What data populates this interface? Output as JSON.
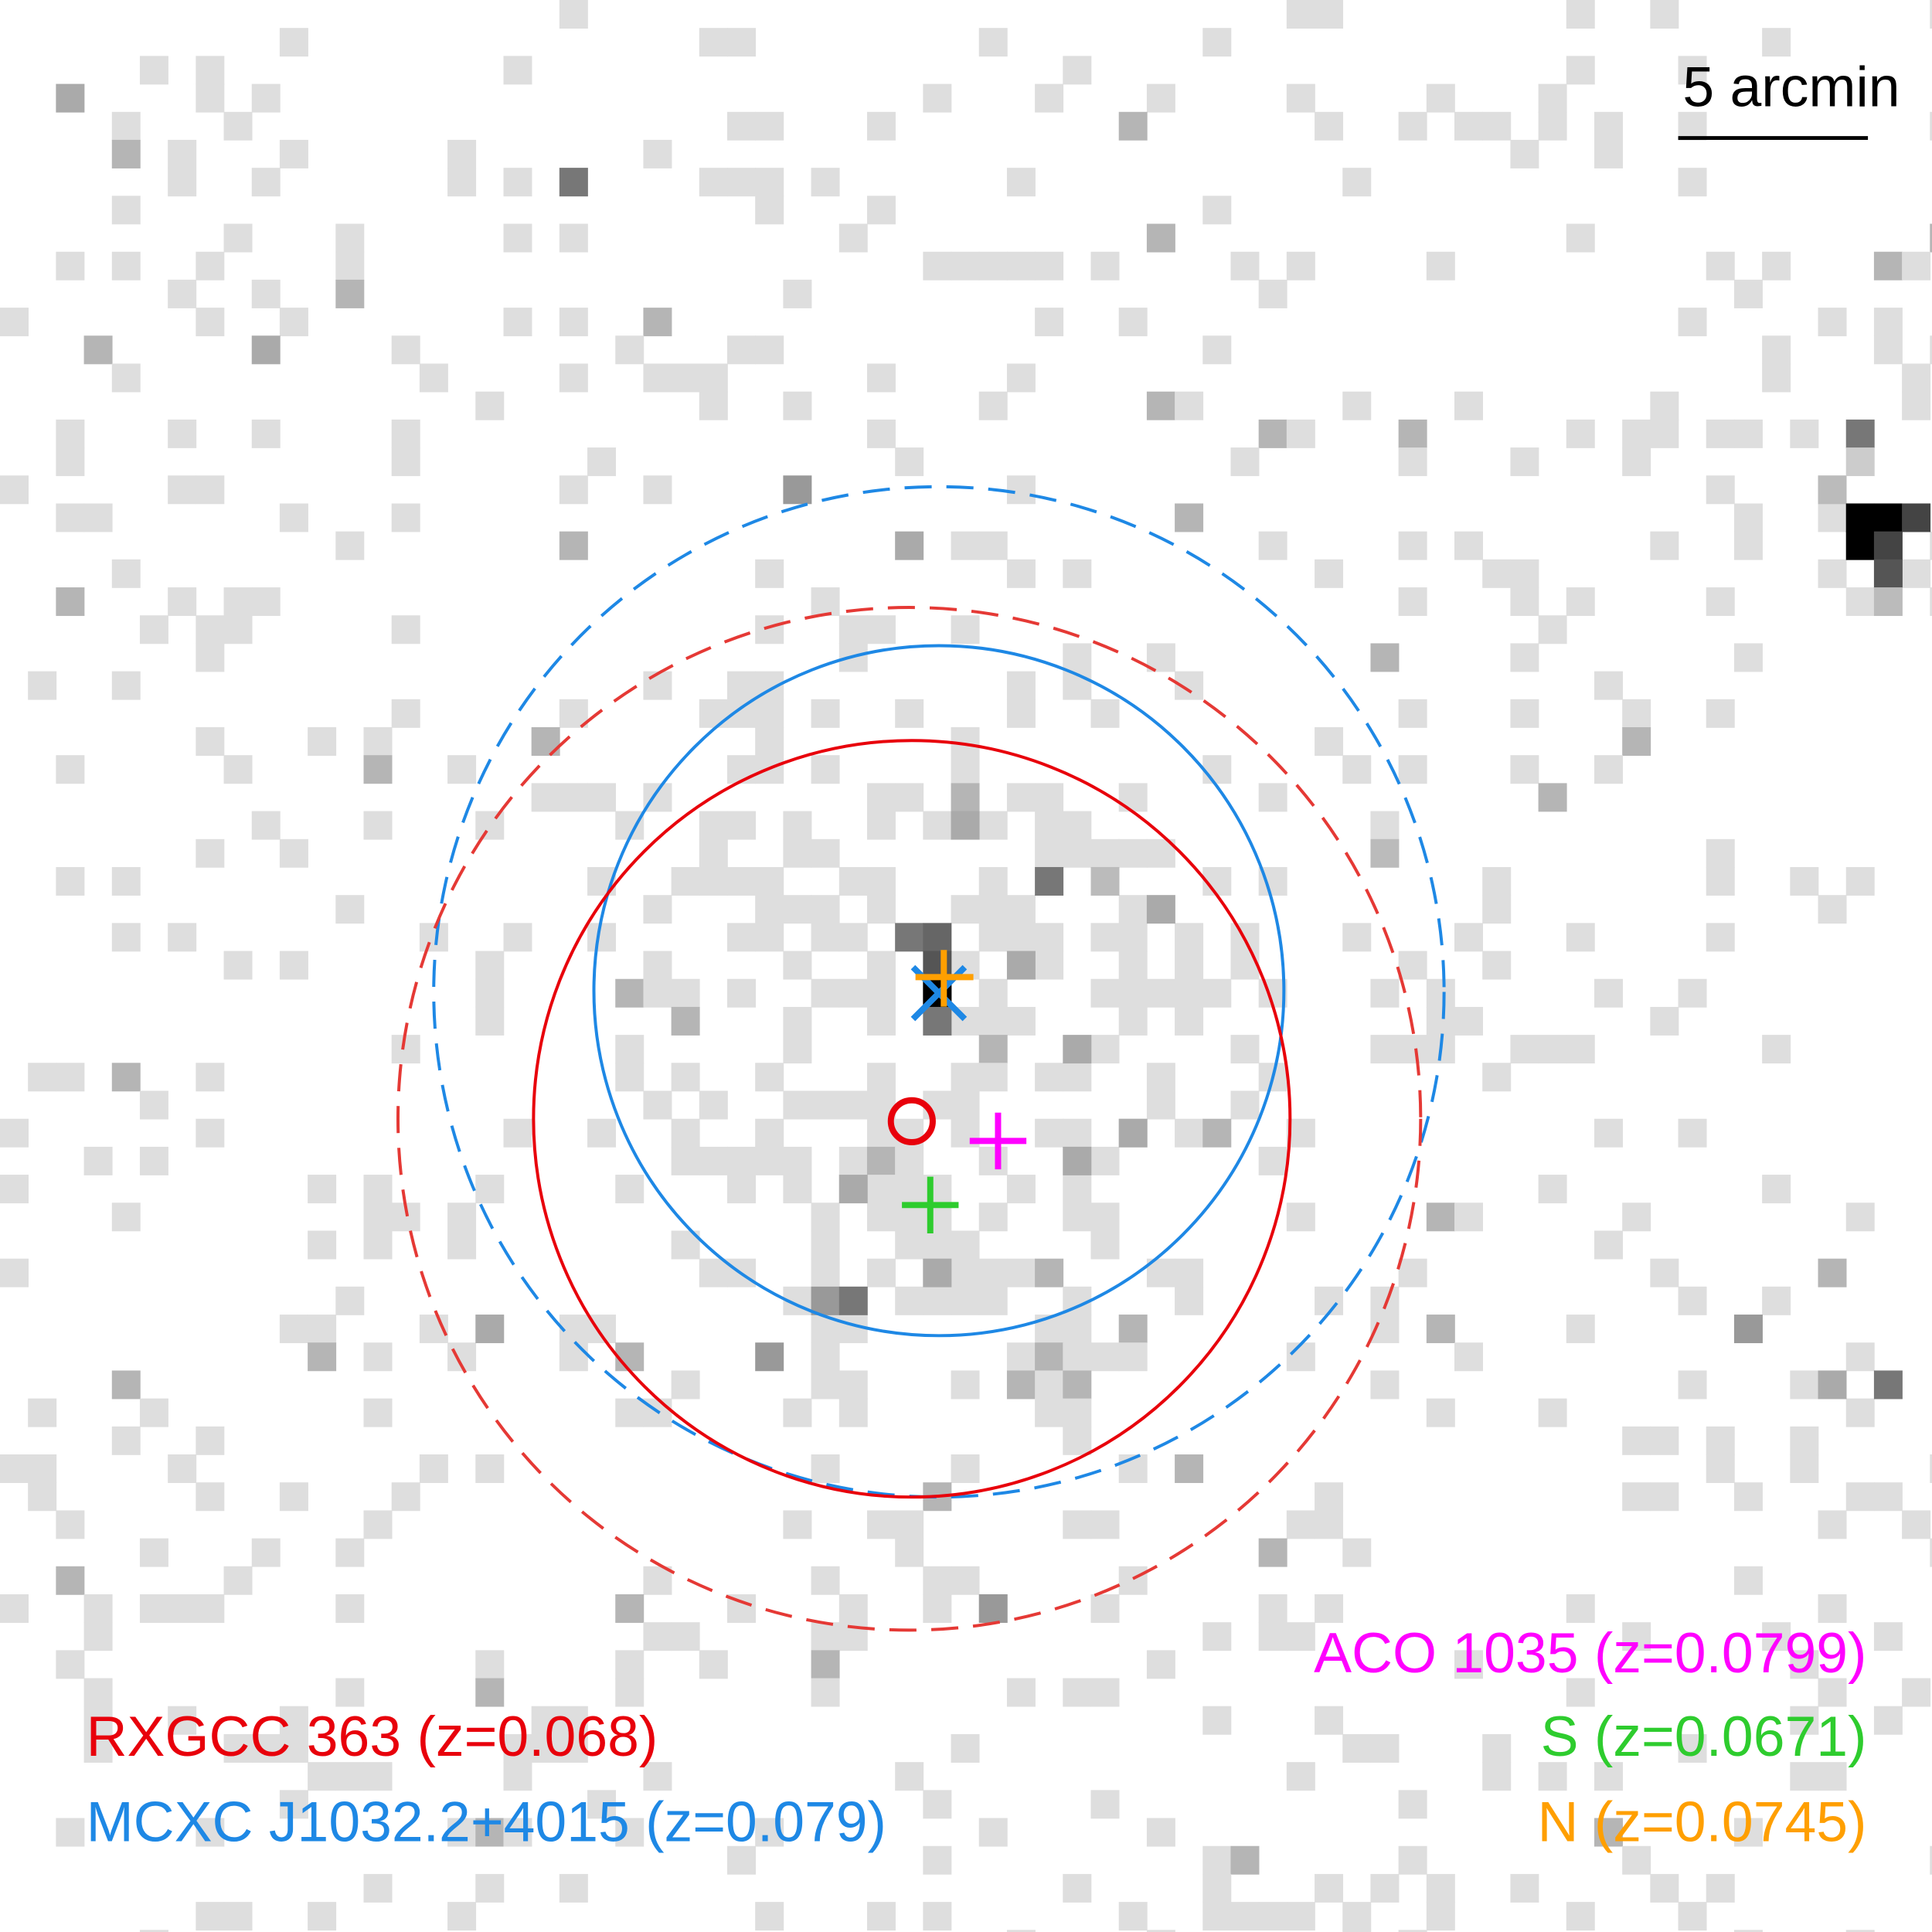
{
  "scale_bar": {
    "label": "5 arcmin"
  },
  "labels": {
    "left": [
      "RXGCC 363 (z=0.068)",
      "MCXC J1032.2+4015 (z=0.079)"
    ],
    "right": [
      "ACO 1035 (z=0.0799)",
      "S (z=0.0671)",
      "N (z=0.0745)"
    ]
  }
}
